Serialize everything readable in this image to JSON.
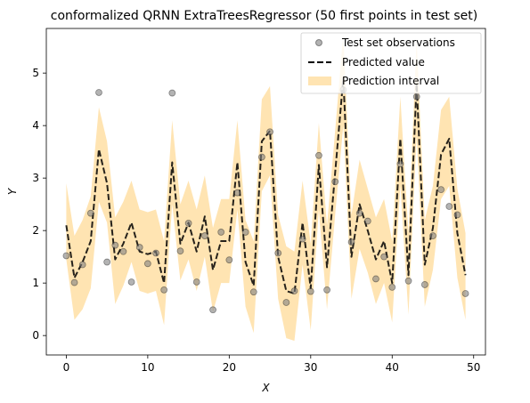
{
  "chart_data": {
    "type": "line",
    "title": "conformalized QRNN ExtraTreesRegressor (50 first points in test set)",
    "xlabel": "X",
    "ylabel": "Y",
    "xlim": [
      -2.45,
      51.45
    ],
    "ylim": [
      -0.37,
      5.85
    ],
    "xticks": [
      0,
      10,
      20,
      30,
      40,
      50
    ],
    "yticks": [
      0,
      1,
      2,
      3,
      4,
      5
    ],
    "grid": false,
    "legend_position": "top-right",
    "legend": [
      "Test set observations",
      "Predicted value",
      "Prediction interval"
    ],
    "colors": {
      "observations": "#808080",
      "predicted": "#000000",
      "interval": "#FFA500"
    },
    "x": [
      0,
      1,
      2,
      3,
      4,
      5,
      6,
      7,
      8,
      9,
      10,
      11,
      12,
      13,
      14,
      15,
      16,
      17,
      18,
      19,
      20,
      21,
      22,
      23,
      24,
      25,
      26,
      27,
      28,
      29,
      30,
      31,
      32,
      33,
      34,
      35,
      36,
      37,
      38,
      39,
      40,
      41,
      42,
      43,
      44,
      45,
      46,
      47,
      48,
      49
    ],
    "series": [
      {
        "name": "Test set observations",
        "kind": "scatter",
        "values": [
          1.52,
          1.01,
          1.35,
          2.33,
          4.63,
          1.4,
          1.72,
          1.6,
          1.02,
          1.68,
          1.37,
          1.57,
          0.87,
          4.62,
          1.61,
          2.14,
          1.02,
          1.9,
          0.49,
          1.97,
          1.44,
          2.72,
          1.97,
          0.83,
          3.4,
          3.88,
          1.57,
          0.63,
          0.85,
          1.84,
          0.84,
          3.43,
          0.87,
          2.93,
          4.68,
          1.78,
          2.33,
          2.18,
          1.08,
          1.5,
          0.92,
          3.27,
          1.04,
          4.55,
          0.97,
          1.9,
          2.78,
          2.46,
          2.3,
          0.8
        ]
      },
      {
        "name": "Predicted value",
        "kind": "line",
        "values": [
          2.1,
          1.1,
          1.4,
          1.8,
          3.55,
          2.9,
          1.45,
          1.75,
          2.15,
          1.6,
          1.55,
          1.6,
          1.0,
          3.3,
          1.75,
          2.15,
          1.6,
          2.27,
          1.25,
          1.8,
          1.8,
          3.3,
          1.4,
          0.95,
          3.7,
          3.9,
          1.5,
          0.85,
          0.8,
          2.15,
          0.9,
          3.25,
          1.3,
          3.1,
          4.9,
          1.5,
          2.5,
          2.0,
          1.45,
          1.8,
          1.0,
          3.75,
          1.15,
          4.8,
          1.35,
          2.05,
          3.45,
          3.75,
          1.95,
          1.15
        ]
      },
      {
        "name": "Prediction interval",
        "kind": "band",
        "lower": [
          1.45,
          0.3,
          0.5,
          0.9,
          2.55,
          2.15,
          0.6,
          0.95,
          1.4,
          0.85,
          0.8,
          0.85,
          0.2,
          2.5,
          1.05,
          1.45,
          0.85,
          1.5,
          0.45,
          1.0,
          1.0,
          2.4,
          0.55,
          0.05,
          2.75,
          3.05,
          0.7,
          -0.05,
          -0.1,
          1.35,
          0.1,
          2.4,
          0.5,
          2.3,
          4.0,
          0.7,
          1.65,
          1.2,
          0.6,
          1.0,
          0.25,
          2.85,
          0.4,
          3.8,
          0.55,
          1.25,
          2.6,
          2.85,
          1.1,
          0.3
        ],
        "upper": [
          2.9,
          1.9,
          2.2,
          2.65,
          4.35,
          3.7,
          2.25,
          2.55,
          2.95,
          2.4,
          2.35,
          2.4,
          1.8,
          4.1,
          2.5,
          2.95,
          2.4,
          3.05,
          2.05,
          2.6,
          2.6,
          4.1,
          2.2,
          1.8,
          4.5,
          4.75,
          2.3,
          1.7,
          1.6,
          2.95,
          1.75,
          4.05,
          2.1,
          3.9,
          5.75,
          2.3,
          3.35,
          2.8,
          2.25,
          2.6,
          1.8,
          4.55,
          1.95,
          5.65,
          2.2,
          2.85,
          4.3,
          4.55,
          2.8,
          1.95
        ]
      }
    ]
  }
}
